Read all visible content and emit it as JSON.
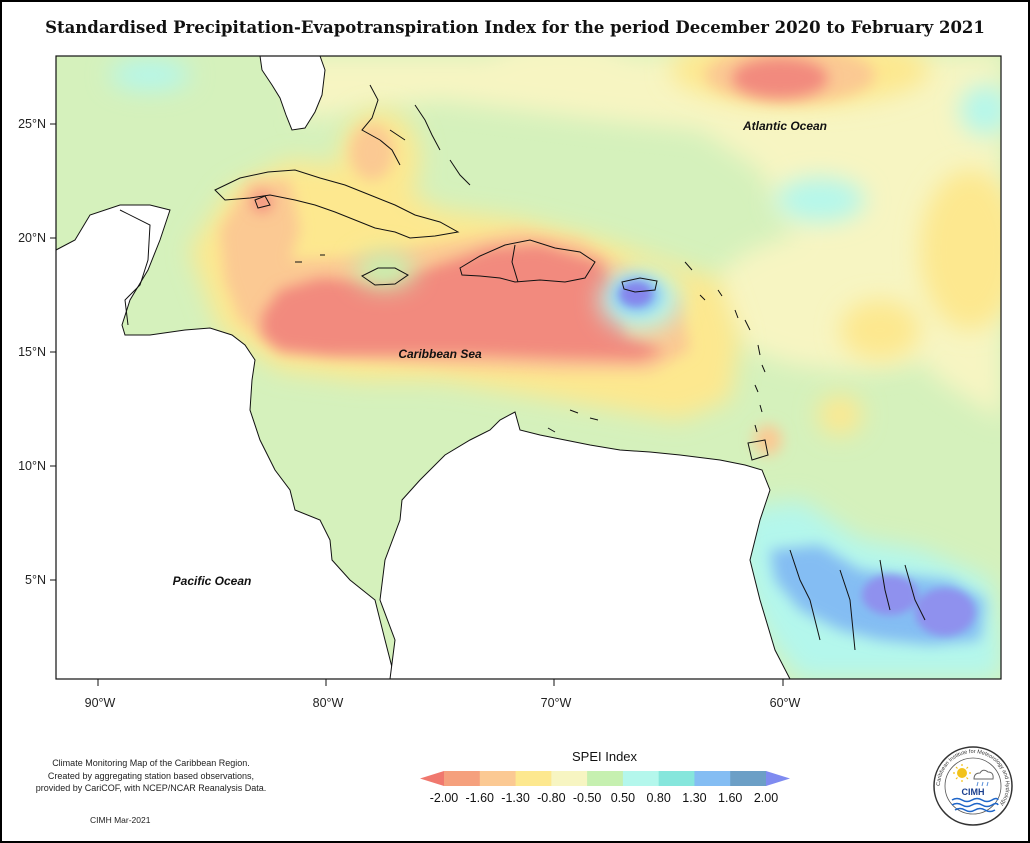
{
  "title": "Standardised Precipitation-Evapotranspiration Index for the period December 2020 to February 2021",
  "map": {
    "ocean_labels": [
      {
        "id": "atlantic",
        "text": "Atlantic Ocean"
      },
      {
        "id": "caribbean",
        "text": "Caribbean Sea"
      },
      {
        "id": "pacific",
        "text": "Pacific Ocean"
      }
    ],
    "lat_labels": [
      "25°N",
      "20°N",
      "15°N",
      "10°N",
      "5°N"
    ],
    "lon_labels": [
      "90°W",
      "80°W",
      "70°W",
      "60°W"
    ]
  },
  "legend": {
    "title": "SPEI Index",
    "values": [
      "-2.00",
      "-1.60",
      "-1.30",
      "-0.80",
      "-0.50",
      "0.50",
      "0.80",
      "1.30",
      "1.60",
      "2.00"
    ],
    "colors": [
      "#f0786e",
      "#f5a07d",
      "#fbc993",
      "#fde88f",
      "#f7f5c2",
      "#c6f0b0",
      "#b4f7ec",
      "#86e6dc",
      "#84bdf3",
      "#6c9fc6",
      "#7f8bf0"
    ]
  },
  "credits": {
    "line1": "Climate Monitoring Map of the Caribbean Region.",
    "line2": "Created by aggregating station based observations,",
    "line3": "provided by CariCOF, with NCEP/NCAR Reanalysis Data.",
    "date": "CIMH Mar-2021"
  },
  "logo": {
    "text": "CIMH",
    "arc_text": "Caribbean Institute for Meteorology and Hydrology"
  }
}
